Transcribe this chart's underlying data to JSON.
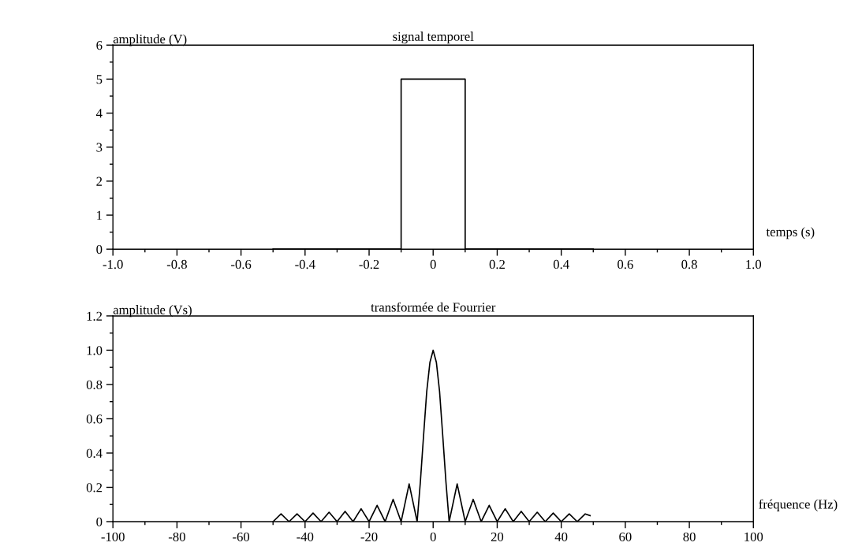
{
  "chart_data": [
    {
      "type": "line",
      "title": "signal temporel",
      "xlabel": "temps (s)",
      "ylabel": "amplitude (V)",
      "xlim": [
        -1.0,
        1.0
      ],
      "ylim": [
        0,
        6
      ],
      "xticks": [
        {
          "value": -1.0,
          "label": "-1.0"
        },
        {
          "value": -0.9,
          "label": null
        },
        {
          "value": -0.8,
          "label": "-0.8"
        },
        {
          "value": -0.7,
          "label": null
        },
        {
          "value": -0.6,
          "label": "-0.6"
        },
        {
          "value": -0.5,
          "label": null
        },
        {
          "value": -0.4,
          "label": "-0.4"
        },
        {
          "value": -0.3,
          "label": null
        },
        {
          "value": -0.2,
          "label": "-0.2"
        },
        {
          "value": -0.1,
          "label": null
        },
        0,
        {
          "value": 0.1,
          "label": null
        },
        {
          "value": 0.2,
          "label": "0.2"
        },
        {
          "value": 0.3,
          "label": null
        },
        {
          "value": 0.4,
          "label": "0.4"
        },
        {
          "value": 0.5,
          "label": null
        },
        {
          "value": 0.6,
          "label": "0.6"
        },
        {
          "value": 0.7,
          "label": null
        },
        {
          "value": 0.8,
          "label": "0.8"
        },
        {
          "value": 0.9,
          "label": null
        },
        {
          "value": 1.0,
          "label": "1.0"
        }
      ],
      "yticks": [
        0,
        {
          "value": 0.5,
          "label": null
        },
        1,
        {
          "value": 1.5,
          "label": null
        },
        2,
        {
          "value": 2.5,
          "label": null
        },
        3,
        {
          "value": 3.5,
          "label": null
        },
        4,
        {
          "value": 4.5,
          "label": null
        },
        5,
        {
          "value": 5.5,
          "label": null
        },
        6
      ],
      "grid": false,
      "legend": false,
      "marker": "none",
      "line_style": "solid",
      "series": [
        {
          "color": "#000000",
          "x": [
            -0.5,
            -0.1,
            -0.1,
            0.1,
            0.1,
            0.5
          ],
          "values": [
            0,
            0,
            5,
            5,
            0,
            0
          ]
        }
      ]
    },
    {
      "type": "line",
      "title": "transformée de Fourrier",
      "xlabel": "fréquence (Hz)",
      "ylabel": "amplitude (Vs)",
      "xlim": [
        -100,
        100
      ],
      "ylim": [
        0,
        1.2
      ],
      "xticks": [
        -100,
        {
          "value": -90,
          "label": null
        },
        -80,
        {
          "value": -70,
          "label": null
        },
        -60,
        {
          "value": -50,
          "label": null
        },
        -40,
        {
          "value": -30,
          "label": null
        },
        -20,
        {
          "value": -10,
          "label": null
        },
        0,
        {
          "value": 10,
          "label": null
        },
        20,
        {
          "value": 30,
          "label": null
        },
        40,
        {
          "value": 50,
          "label": null
        },
        60,
        {
          "value": 70,
          "label": null
        },
        80,
        {
          "value": 90,
          "label": null
        },
        100
      ],
      "yticks": [
        0,
        {
          "value": 0.1,
          "label": null
        },
        {
          "value": 0.2,
          "label": "0.2"
        },
        {
          "value": 0.3,
          "label": null
        },
        {
          "value": 0.4,
          "label": "0.4"
        },
        {
          "value": 0.5,
          "label": null
        },
        {
          "value": 0.6,
          "label": "0.6"
        },
        {
          "value": 0.7,
          "label": null
        },
        {
          "value": 0.8,
          "label": "0.8"
        },
        {
          "value": 0.9,
          "label": null
        },
        {
          "value": 1.0,
          "label": "1.0"
        },
        {
          "value": 1.1,
          "label": null
        },
        {
          "value": 1.2,
          "label": "1.2"
        }
      ],
      "grid": false,
      "legend": false,
      "marker": "none",
      "line_style": "solid",
      "series": [
        {
          "color": "#000000",
          "x": [
            -50,
            -47.5,
            -45,
            -42.5,
            -40,
            -37.5,
            -35,
            -32.5,
            -30,
            -27.5,
            -25,
            -22.5,
            -20,
            -17.5,
            -15,
            -12.5,
            -10,
            -7.5,
            -5,
            -4,
            -3,
            -2,
            -1,
            0,
            1,
            2,
            3,
            4,
            5,
            7.5,
            10,
            12.5,
            15,
            17.5,
            20,
            22.5,
            25,
            27.5,
            30,
            32.5,
            35,
            37.5,
            40,
            42.5,
            45,
            47.5,
            49
          ],
          "values": [
            0,
            0.045,
            0,
            0.045,
            0,
            0.05,
            0,
            0.055,
            0,
            0.06,
            0,
            0.075,
            0,
            0.095,
            0,
            0.13,
            0,
            0.22,
            0,
            0.23,
            0.5,
            0.76,
            0.93,
            1.0,
            0.93,
            0.76,
            0.5,
            0.23,
            0,
            0.22,
            0,
            0.13,
            0,
            0.095,
            0,
            0.075,
            0,
            0.06,
            0,
            0.055,
            0,
            0.05,
            0,
            0.045,
            0,
            0.045,
            0.035
          ]
        }
      ]
    }
  ]
}
